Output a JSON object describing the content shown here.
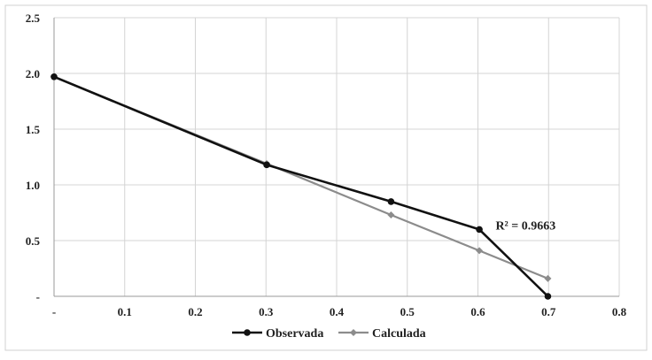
{
  "chart_data": {
    "type": "line",
    "title": "",
    "xlabel": "",
    "ylabel": "",
    "xlim": [
      0,
      0.8
    ],
    "ylim": [
      0,
      2.5
    ],
    "x_ticks": [
      0,
      0.1,
      0.2,
      0.3,
      0.4,
      0.5,
      0.6,
      0.7,
      0.8
    ],
    "x_tick_labels": [
      "-",
      "0.1",
      "0.2",
      "0.3",
      "0.4",
      "0.5",
      "0.6",
      "0.7",
      "0.8"
    ],
    "y_ticks": [
      0,
      0.5,
      1.0,
      1.5,
      2.0,
      2.5
    ],
    "y_tick_labels": [
      "-",
      "0.5",
      "1.0",
      "1.5",
      "2.0",
      "2.5"
    ],
    "grid": true,
    "legend_position": "bottom",
    "series": [
      {
        "name": "Observada",
        "color": "#111111",
        "x": [
          0,
          0.301,
          0.477,
          0.602,
          0.699
        ],
        "y": [
          1.97,
          1.18,
          0.85,
          0.6,
          0.0
        ]
      },
      {
        "name": "Calculada",
        "color": "#8c8c8c",
        "x": [
          0,
          0.301,
          0.477,
          0.602,
          0.699
        ],
        "y": [
          1.97,
          1.19,
          0.73,
          0.41,
          0.16
        ]
      }
    ],
    "annotations": [
      {
        "text": "R² = 0.9663",
        "x": 0.625,
        "y": 0.6
      }
    ]
  }
}
